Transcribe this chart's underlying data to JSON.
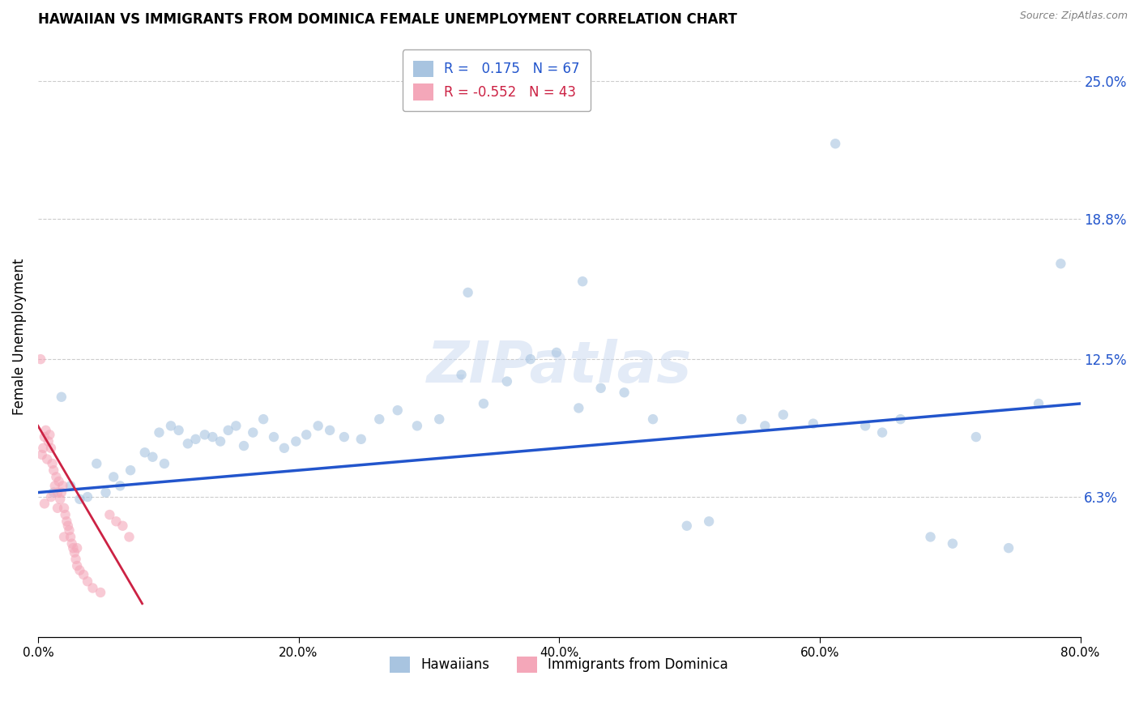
{
  "title": "HAWAIIAN VS IMMIGRANTS FROM DOMINICA FEMALE UNEMPLOYMENT CORRELATION CHART",
  "source": "Source: ZipAtlas.com",
  "xlabel_vals": [
    0,
    20,
    40,
    60,
    80
  ],
  "ylabel_vals": [
    6.3,
    12.5,
    18.8,
    25.0
  ],
  "ylabel_labels": [
    "6.3%",
    "12.5%",
    "18.8%",
    "25.0%"
  ],
  "watermark": "ZIPatlas",
  "hawaiian_color": "#a8c4e0",
  "dominica_color": "#f4a7b9",
  "trendline_hawaiian_color": "#2255cc",
  "trendline_dominica_color": "#cc2244",
  "hawaiian_scatter": [
    [
      1.2,
      6.5
    ],
    [
      1.8,
      10.8
    ],
    [
      2.5,
      6.8
    ],
    [
      3.2,
      6.2
    ],
    [
      3.8,
      6.3
    ],
    [
      4.5,
      7.8
    ],
    [
      5.2,
      6.5
    ],
    [
      5.8,
      7.2
    ],
    [
      6.3,
      6.8
    ],
    [
      7.1,
      7.5
    ],
    [
      8.2,
      8.3
    ],
    [
      8.8,
      8.1
    ],
    [
      9.3,
      9.2
    ],
    [
      9.7,
      7.8
    ],
    [
      10.2,
      9.5
    ],
    [
      10.8,
      9.3
    ],
    [
      11.5,
      8.7
    ],
    [
      12.1,
      8.9
    ],
    [
      12.8,
      9.1
    ],
    [
      13.4,
      9.0
    ],
    [
      14.0,
      8.8
    ],
    [
      14.6,
      9.3
    ],
    [
      15.2,
      9.5
    ],
    [
      15.8,
      8.6
    ],
    [
      16.5,
      9.2
    ],
    [
      17.3,
      9.8
    ],
    [
      18.1,
      9.0
    ],
    [
      18.9,
      8.5
    ],
    [
      19.8,
      8.8
    ],
    [
      20.6,
      9.1
    ],
    [
      21.5,
      9.5
    ],
    [
      22.4,
      9.3
    ],
    [
      23.5,
      9.0
    ],
    [
      24.8,
      8.9
    ],
    [
      26.2,
      9.8
    ],
    [
      27.6,
      10.2
    ],
    [
      29.1,
      9.5
    ],
    [
      30.8,
      9.8
    ],
    [
      32.5,
      11.8
    ],
    [
      34.2,
      10.5
    ],
    [
      36.0,
      11.5
    ],
    [
      37.8,
      12.5
    ],
    [
      39.8,
      12.8
    ],
    [
      41.5,
      10.3
    ],
    [
      43.2,
      11.2
    ],
    [
      45.0,
      11.0
    ],
    [
      47.2,
      9.8
    ],
    [
      49.8,
      5.0
    ],
    [
      51.5,
      5.2
    ],
    [
      54.0,
      9.8
    ],
    [
      55.8,
      9.5
    ],
    [
      57.2,
      10.0
    ],
    [
      59.5,
      9.6
    ],
    [
      61.2,
      22.2
    ],
    [
      63.5,
      9.5
    ],
    [
      64.8,
      9.2
    ],
    [
      66.2,
      9.8
    ],
    [
      68.5,
      4.5
    ],
    [
      70.2,
      4.2
    ],
    [
      72.0,
      9.0
    ],
    [
      74.5,
      4.0
    ],
    [
      76.8,
      10.5
    ],
    [
      78.5,
      16.8
    ],
    [
      33.0,
      15.5
    ],
    [
      41.8,
      16.0
    ]
  ],
  "dominica_scatter": [
    [
      0.2,
      12.5
    ],
    [
      0.3,
      8.2
    ],
    [
      0.4,
      8.5
    ],
    [
      0.5,
      9.0
    ],
    [
      0.6,
      9.3
    ],
    [
      0.7,
      8.0
    ],
    [
      0.8,
      8.8
    ],
    [
      0.9,
      9.1
    ],
    [
      1.0,
      8.5
    ],
    [
      1.1,
      7.8
    ],
    [
      1.2,
      7.5
    ],
    [
      1.3,
      6.8
    ],
    [
      1.4,
      7.2
    ],
    [
      1.5,
      6.5
    ],
    [
      1.6,
      7.0
    ],
    [
      1.7,
      6.2
    ],
    [
      1.8,
      6.5
    ],
    [
      1.9,
      6.8
    ],
    [
      2.0,
      5.8
    ],
    [
      2.1,
      5.5
    ],
    [
      2.2,
      5.2
    ],
    [
      2.3,
      5.0
    ],
    [
      2.4,
      4.8
    ],
    [
      2.5,
      4.5
    ],
    [
      2.6,
      4.2
    ],
    [
      2.7,
      4.0
    ],
    [
      2.8,
      3.8
    ],
    [
      2.9,
      3.5
    ],
    [
      3.0,
      3.2
    ],
    [
      3.2,
      3.0
    ],
    [
      3.5,
      2.8
    ],
    [
      3.8,
      2.5
    ],
    [
      4.2,
      2.2
    ],
    [
      4.8,
      2.0
    ],
    [
      5.5,
      5.5
    ],
    [
      6.0,
      5.2
    ],
    [
      6.5,
      5.0
    ],
    [
      7.0,
      4.5
    ],
    [
      0.5,
      6.0
    ],
    [
      1.0,
      6.3
    ],
    [
      1.5,
      5.8
    ],
    [
      2.0,
      4.5
    ],
    [
      3.0,
      4.0
    ]
  ],
  "hawaiian_trend_x": [
    0,
    80
  ],
  "hawaiian_trend_y": [
    6.5,
    10.5
  ],
  "dominica_trend_x": [
    0,
    8
  ],
  "dominica_trend_y": [
    9.5,
    1.5
  ],
  "xlim": [
    0,
    80
  ],
  "ylim": [
    0,
    27
  ],
  "ylabel": "Female Unemployment",
  "bg_color": "#ffffff",
  "grid_color": "#cccccc",
  "marker_size": 80,
  "marker_alpha": 0.6
}
